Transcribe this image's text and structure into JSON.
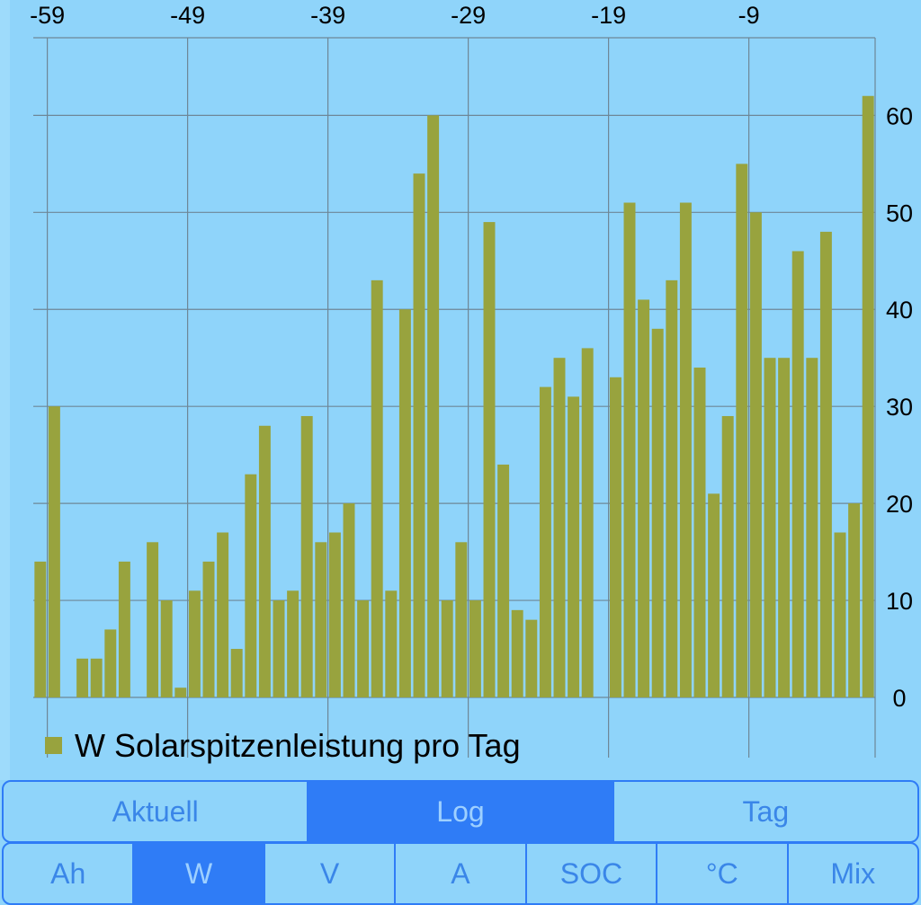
{
  "colors": {
    "background": "#8FD4FA",
    "bar": "#98A33E",
    "grid": "#6E8797",
    "accent": "#2F7CF6",
    "segment_text": "#3A86E8",
    "segment_text_active": "#9ED0FF"
  },
  "chart_data": {
    "type": "bar",
    "title": "",
    "xlabel": "",
    "ylabel": "",
    "x_ticks": [
      -59,
      -49,
      -39,
      -29,
      -19,
      -9
    ],
    "y_ticks": [
      0,
      10,
      20,
      30,
      40,
      50,
      60
    ],
    "xlim": [
      -60,
      0
    ],
    "ylim": [
      0,
      68
    ],
    "grid": true,
    "legend_position": "bottom-left",
    "series": [
      {
        "name": "W Solarspitzenleistung pro Tag",
        "x": [
          -60,
          -59,
          -58,
          -57,
          -56,
          -55,
          -54,
          -53,
          -52,
          -51,
          -50,
          -49,
          -48,
          -47,
          -46,
          -45,
          -44,
          -43,
          -42,
          -41,
          -40,
          -39,
          -38,
          -37,
          -36,
          -35,
          -34,
          -33,
          -32,
          -31,
          -30,
          -29,
          -28,
          -27,
          -26,
          -25,
          -24,
          -23,
          -22,
          -21,
          -20,
          -19,
          -18,
          -17,
          -16,
          -15,
          -14,
          -13,
          -12,
          -11,
          -10,
          -9,
          -8,
          -7,
          -6,
          -5,
          -4,
          -3,
          -2,
          -1
        ],
        "values": [
          14,
          30,
          0,
          4,
          4,
          7,
          14,
          0,
          16,
          10,
          1,
          11,
          14,
          17,
          5,
          23,
          28,
          10,
          11,
          29,
          16,
          17,
          20,
          10,
          43,
          11,
          40,
          54,
          60,
          10,
          16,
          10,
          49,
          24,
          9,
          8,
          32,
          35,
          31,
          36,
          0,
          33,
          51,
          41,
          38,
          43,
          51,
          34,
          21,
          29,
          55,
          50,
          35,
          35,
          46,
          35,
          48,
          17,
          20,
          62
        ]
      }
    ]
  },
  "segments_top": [
    {
      "label": "Aktuell",
      "active": false
    },
    {
      "label": "Log",
      "active": true
    },
    {
      "label": "Tag",
      "active": false
    }
  ],
  "segments_bottom": [
    {
      "label": "Ah",
      "active": false
    },
    {
      "label": "W",
      "active": true
    },
    {
      "label": "V",
      "active": false
    },
    {
      "label": "A",
      "active": false
    },
    {
      "label": "SOC",
      "active": false
    },
    {
      "label": "°C",
      "active": false
    },
    {
      "label": "Mix",
      "active": false
    }
  ]
}
